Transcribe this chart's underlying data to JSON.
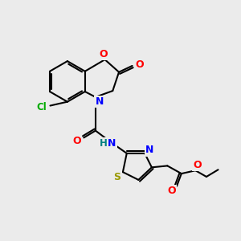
{
  "bg_color": "#ebebeb",
  "bond_color": "#000000",
  "atom_colors": {
    "O": "#ff0000",
    "N": "#0000ff",
    "S": "#999900",
    "Cl": "#00aa00",
    "H": "#008080",
    "C": "#000000"
  },
  "figsize": [
    3.0,
    3.0
  ],
  "dpi": 100
}
